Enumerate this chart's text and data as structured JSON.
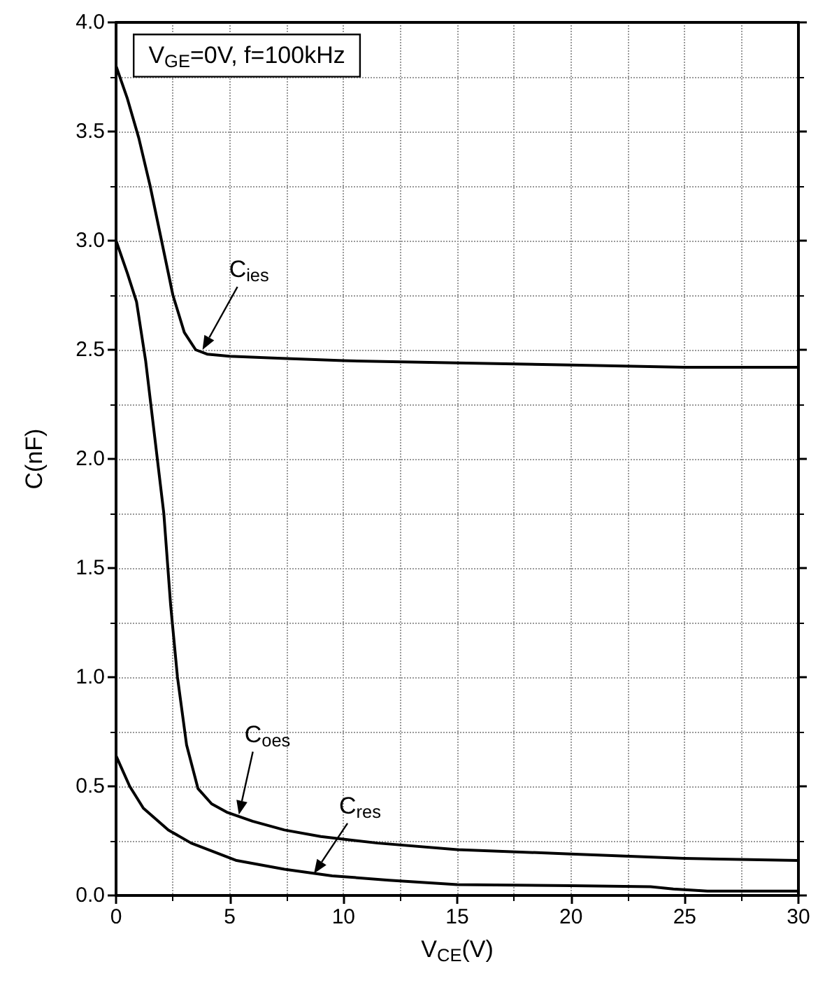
{
  "chart_data": {
    "type": "line",
    "xlabel": "V$_{CE}$(V)",
    "ylabel": "C(nF)",
    "xlim": [
      0,
      30
    ],
    "xticks": [
      0,
      5,
      10,
      15,
      20,
      25,
      30
    ],
    "ylim": [
      0,
      4
    ],
    "yticks": [
      {
        "value": 0,
        "label": "0.0"
      },
      {
        "value": 0.5,
        "label": "0.5"
      },
      {
        "value": 1,
        "label": "1.0"
      },
      {
        "value": 1.5,
        "label": "1.5"
      },
      {
        "value": 2,
        "label": "2.0"
      },
      {
        "value": 2.5,
        "label": "2.5"
      },
      {
        "value": 3,
        "label": "3.0"
      },
      {
        "value": 3.5,
        "label": "3.5"
      },
      {
        "value": 4,
        "label": "4.0"
      }
    ],
    "grid": true,
    "marker": "none",
    "series": [
      {
        "color": "#000000",
        "x": [
          0,
          0.5,
          1,
          1.5,
          2,
          2.5,
          3,
          3.5,
          4,
          5,
          7.5,
          10,
          15,
          20,
          25,
          30
        ],
        "values": [
          3.8,
          3.65,
          3.47,
          3.25,
          3.0,
          2.75,
          2.58,
          2.5,
          2.48,
          2.47,
          2.46,
          2.45,
          2.44,
          2.43,
          2.42,
          2.42
        ]
      },
      {
        "color": "#000000",
        "x": [
          0,
          0.5,
          0.9,
          1.3,
          1.7,
          2.1,
          2.4,
          2.7,
          3.1,
          3.6,
          4.2,
          4.9,
          6,
          7.4,
          9,
          11.5,
          15,
          20,
          25,
          30
        ],
        "values": [
          3.0,
          2.85,
          2.72,
          2.45,
          2.1,
          1.75,
          1.33,
          1.0,
          0.69,
          0.49,
          0.42,
          0.38,
          0.34,
          0.3,
          0.27,
          0.24,
          0.21,
          0.19,
          0.17,
          0.16
        ]
      },
      {
        "color": "#000000",
        "x": [
          0,
          0.6,
          1.2,
          2.3,
          3.3,
          5.3,
          7.4,
          9.5,
          12,
          15,
          20,
          23.5,
          24.5,
          26,
          30
        ],
        "values": [
          0.64,
          0.5,
          0.4,
          0.3,
          0.24,
          0.16,
          0.12,
          0.09,
          0.07,
          0.05,
          0.045,
          0.04,
          0.03,
          0.02,
          0.02
        ]
      }
    ],
    "annotations": [
      "V$_{GE}$=0V, f=100kHz",
      {
        "text": "C$_{ies}$",
        "x": 3.8,
        "y": 2.5
      },
      {
        "text": "C$_{oes}$",
        "x": 5.4,
        "y": 0.37
      },
      {
        "text": "C$_{res}$",
        "x": 8.7,
        "y": 0.1
      }
    ]
  }
}
